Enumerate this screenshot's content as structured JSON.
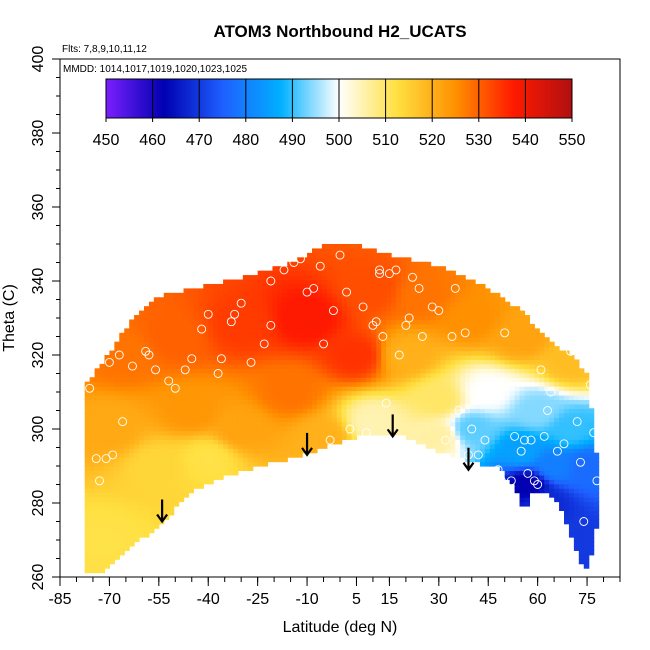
{
  "chart_data": {
    "type": "heatmap",
    "title": "ATOM3 Northbound H2_UCATS",
    "annotations": [
      "Flts: 7,8,9,10,11,12",
      "MMDD: 1014,1017,1019,1020,1023,1025"
    ],
    "xlabel": "Latitude (deg N)",
    "ylabel": "Theta (C)",
    "xlim": [
      -85,
      85
    ],
    "ylim": [
      260,
      400
    ],
    "x_ticks": [
      -85,
      -70,
      -55,
      -40,
      -25,
      -10,
      5,
      15,
      30,
      45,
      60,
      75
    ],
    "y_ticks": [
      260,
      280,
      300,
      320,
      340,
      360,
      380,
      400
    ],
    "grid": false,
    "colorbar": {
      "position": "top-inset",
      "min": 450,
      "max": 550,
      "ticks": [
        450,
        460,
        470,
        480,
        490,
        500,
        510,
        520,
        530,
        540,
        550
      ],
      "colors": [
        "#7a20ff",
        "#0000b0",
        "#1f5fff",
        "#00b0ff",
        "#ffffff",
        "#ffe040",
        "#ff9000",
        "#ff1a00",
        "#b01010"
      ]
    },
    "field_outline": [
      [
        -78,
        262
      ],
      [
        -77,
        292
      ],
      [
        -77,
        312
      ],
      [
        -72,
        318
      ],
      [
        -63,
        330
      ],
      [
        -55,
        336
      ],
      [
        -40,
        339
      ],
      [
        -25,
        342
      ],
      [
        -12,
        346
      ],
      [
        -5,
        350
      ],
      [
        5,
        350
      ],
      [
        15,
        347
      ],
      [
        30,
        344
      ],
      [
        45,
        338
      ],
      [
        55,
        332
      ],
      [
        62,
        325
      ],
      [
        70,
        320
      ],
      [
        75,
        315
      ],
      [
        77,
        300
      ],
      [
        79,
        283
      ],
      [
        77,
        268
      ],
      [
        74,
        261
      ],
      [
        70,
        272
      ],
      [
        65,
        282
      ],
      [
        58,
        283
      ],
      [
        56,
        277
      ],
      [
        53,
        284
      ],
      [
        48,
        290
      ],
      [
        40,
        291
      ],
      [
        30,
        294
      ],
      [
        20,
        298
      ],
      [
        15,
        299
      ],
      [
        5,
        298
      ],
      [
        -5,
        295
      ],
      [
        -15,
        292
      ],
      [
        -25,
        290
      ],
      [
        -35,
        287
      ],
      [
        -45,
        283
      ],
      [
        -55,
        274
      ],
      [
        -62,
        269
      ],
      [
        -68,
        264
      ],
      [
        -73,
        261
      ]
    ],
    "anchors": [
      [
        -10,
        330,
        538
      ],
      [
        -30,
        328,
        534
      ],
      [
        -50,
        325,
        530
      ],
      [
        -65,
        320,
        528
      ],
      [
        5,
        320,
        535
      ],
      [
        -45,
        305,
        524
      ],
      [
        -70,
        300,
        521
      ],
      [
        -55,
        290,
        514
      ],
      [
        -30,
        300,
        522
      ],
      [
        -15,
        310,
        528
      ],
      [
        10,
        338,
        532
      ],
      [
        25,
        336,
        528
      ],
      [
        40,
        330,
        525
      ],
      [
        55,
        325,
        522
      ],
      [
        70,
        318,
        518
      ],
      [
        20,
        320,
        520
      ],
      [
        30,
        308,
        510
      ],
      [
        10,
        302,
        505
      ],
      [
        45,
        310,
        500
      ],
      [
        60,
        305,
        494
      ],
      [
        70,
        300,
        490
      ],
      [
        40,
        300,
        492
      ],
      [
        55,
        294,
        485
      ],
      [
        65,
        290,
        480
      ],
      [
        57,
        285,
        462
      ],
      [
        62,
        280,
        468
      ],
      [
        72,
        270,
        470
      ],
      [
        75,
        290,
        477
      ],
      [
        30,
        298,
        506
      ],
      [
        -72,
        270,
        512
      ],
      [
        -5,
        298,
        520
      ],
      [
        -40,
        292,
        512
      ]
    ],
    "observations": [
      [
        -76,
        311
      ],
      [
        -74,
        292
      ],
      [
        -71,
        292
      ],
      [
        -69,
        293
      ],
      [
        -66,
        302
      ],
      [
        -73,
        286
      ],
      [
        -70,
        318
      ],
      [
        -67,
        320
      ],
      [
        -63,
        317
      ],
      [
        -59,
        321
      ],
      [
        -58,
        320
      ],
      [
        -56,
        316
      ],
      [
        -52,
        313
      ],
      [
        -50,
        311
      ],
      [
        -47,
        316
      ],
      [
        -45,
        319
      ],
      [
        -42,
        327
      ],
      [
        -40,
        331
      ],
      [
        -37,
        315
      ],
      [
        -36,
        319
      ],
      [
        -33,
        329
      ],
      [
        -32,
        331
      ],
      [
        -30,
        334
      ],
      [
        -27,
        318
      ],
      [
        -23,
        323
      ],
      [
        -21,
        328
      ],
      [
        -21,
        340
      ],
      [
        -17,
        343
      ],
      [
        -14,
        345
      ],
      [
        -12,
        346
      ],
      [
        -10,
        337
      ],
      [
        -8,
        338
      ],
      [
        -6,
        344
      ],
      [
        -5,
        323
      ],
      [
        -2,
        332
      ],
      [
        -3,
        297
      ],
      [
        0,
        347
      ],
      [
        2,
        337
      ],
      [
        3,
        300
      ],
      [
        7,
        333
      ],
      [
        8,
        299
      ],
      [
        10,
        328
      ],
      [
        11,
        329
      ],
      [
        12,
        343
      ],
      [
        12,
        342
      ],
      [
        13,
        325
      ],
      [
        14,
        307
      ],
      [
        15,
        342
      ],
      [
        17,
        343
      ],
      [
        18,
        320
      ],
      [
        20,
        328
      ],
      [
        21,
        330
      ],
      [
        22,
        341
      ],
      [
        24,
        338
      ],
      [
        25,
        325
      ],
      [
        28,
        333
      ],
      [
        30,
        332
      ],
      [
        32,
        297
      ],
      [
        34,
        325
      ],
      [
        35,
        338
      ],
      [
        36,
        305
      ],
      [
        38,
        326
      ],
      [
        39,
        293
      ],
      [
        40,
        300
      ],
      [
        42,
        293
      ],
      [
        44,
        297
      ],
      [
        46,
        309
      ],
      [
        48,
        289
      ],
      [
        49,
        286
      ],
      [
        50,
        326
      ],
      [
        52,
        286
      ],
      [
        53,
        298
      ],
      [
        55,
        294
      ],
      [
        56,
        297
      ],
      [
        57,
        288
      ],
      [
        58,
        297
      ],
      [
        59,
        286
      ],
      [
        60,
        285
      ],
      [
        61,
        316
      ],
      [
        62,
        298
      ],
      [
        63,
        305
      ],
      [
        64,
        310
      ],
      [
        65,
        279
      ],
      [
        66,
        294
      ],
      [
        68,
        296
      ],
      [
        70,
        321
      ],
      [
        72,
        302
      ],
      [
        73,
        291
      ],
      [
        74,
        275
      ],
      [
        76,
        312
      ],
      [
        77,
        299
      ],
      [
        78,
        286
      ],
      [
        79,
        300
      ]
    ],
    "arrows": [
      [
        -54,
        275
      ],
      [
        -10,
        293
      ],
      [
        16,
        298
      ],
      [
        39,
        289
      ]
    ]
  }
}
